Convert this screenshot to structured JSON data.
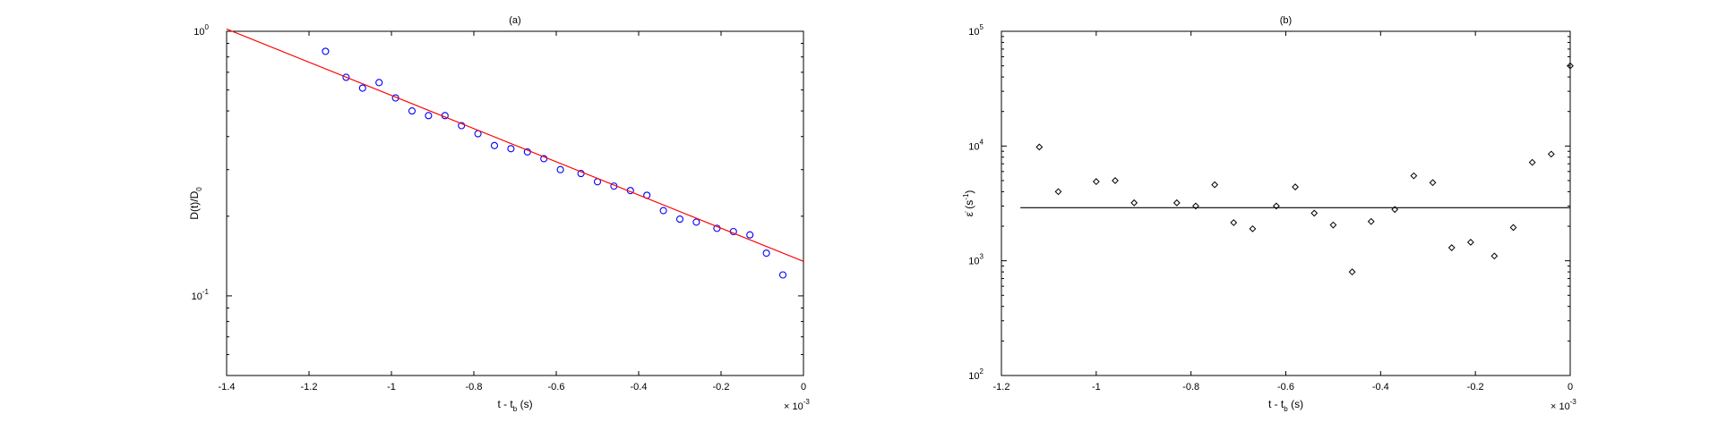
{
  "chart_data": [
    {
      "panel": "a",
      "type": "scatter",
      "title": "(a)",
      "xlabel": "t - t_b (s)",
      "ylabel": "D(t)/D_0",
      "x_multiplier": "× 10^-3",
      "yscale": "log",
      "xlim": [
        -1.4,
        0
      ],
      "ylim": [
        0.05,
        1
      ],
      "xticks": [
        -1.4,
        -1.2,
        -1.0,
        -0.8,
        -0.6,
        -0.4,
        -0.2,
        0
      ],
      "xticklabels": [
        "-1.4",
        "-1.2",
        "-1",
        "-0.8",
        "-0.6",
        "-0.4",
        "-0.2",
        "0"
      ],
      "yticks": [
        0.1,
        1
      ],
      "ytick_mantissa": "10",
      "ytick_exponents": [
        "-1",
        "0"
      ],
      "grid": false,
      "series": [
        {
          "kind": "points",
          "marker": "circle",
          "color": "#0000ff",
          "x": [
            -1.16,
            -1.11,
            -1.07,
            -1.03,
            -0.99,
            -0.95,
            -0.91,
            -0.87,
            -0.83,
            -0.79,
            -0.75,
            -0.71,
            -0.67,
            -0.63,
            -0.59,
            -0.54,
            -0.5,
            -0.46,
            -0.42,
            -0.38,
            -0.34,
            -0.3,
            -0.26,
            -0.21,
            -0.17,
            -0.13,
            -0.09,
            -0.05
          ],
          "y": [
            0.84,
            0.67,
            0.61,
            0.64,
            0.56,
            0.5,
            0.48,
            0.48,
            0.44,
            0.41,
            0.37,
            0.36,
            0.35,
            0.33,
            0.3,
            0.29,
            0.27,
            0.26,
            0.25,
            0.24,
            0.21,
            0.195,
            0.19,
            0.18,
            0.175,
            0.17,
            0.145,
            0.12
          ]
        },
        {
          "kind": "fit_line",
          "color": "#ff0000",
          "x": [
            -1.4,
            0
          ],
          "y": [
            1.02,
            0.135
          ]
        }
      ]
    },
    {
      "panel": "b",
      "type": "scatter",
      "title": "(b)",
      "xlabel": "t - t_b (s)",
      "ylabel": "ε̇ (s^-1)",
      "x_multiplier": "× 10^-3",
      "yscale": "log",
      "xlim": [
        -1.2,
        0
      ],
      "ylim": [
        100,
        100000
      ],
      "xticks": [
        -1.2,
        -1.0,
        -0.8,
        -0.6,
        -0.4,
        -0.2,
        0
      ],
      "xticklabels": [
        "-1.2",
        "-1",
        "-0.8",
        "-0.6",
        "-0.4",
        "-0.2",
        "0"
      ],
      "yticks": [
        100,
        1000,
        10000,
        100000
      ],
      "ytick_mantissa": "10",
      "ytick_exponents": [
        "2",
        "3",
        "4",
        "5"
      ],
      "grid": false,
      "series": [
        {
          "kind": "points",
          "marker": "diamond",
          "color": "#000000",
          "x": [
            -1.12,
            -1.08,
            -1.0,
            -0.96,
            -0.92,
            -0.83,
            -0.79,
            -0.75,
            -0.71,
            -0.67,
            -0.62,
            -0.58,
            -0.54,
            -0.5,
            -0.46,
            -0.42,
            -0.37,
            -0.33,
            -0.29,
            -0.25,
            -0.21,
            -0.16,
            -0.12,
            -0.08,
            -0.04,
            0.0
          ],
          "y": [
            9800,
            4000,
            4900,
            5000,
            3200,
            3200,
            3000,
            4600,
            2150,
            1900,
            3000,
            4400,
            2600,
            2050,
            800,
            2200,
            2800,
            5500,
            4800,
            1300,
            1450,
            1100,
            1950,
            7200,
            8500,
            50000
          ]
        },
        {
          "kind": "mean_line",
          "color": "#000000",
          "x": [
            -1.16,
            0
          ],
          "y": [
            2900,
            2900
          ]
        }
      ]
    }
  ]
}
